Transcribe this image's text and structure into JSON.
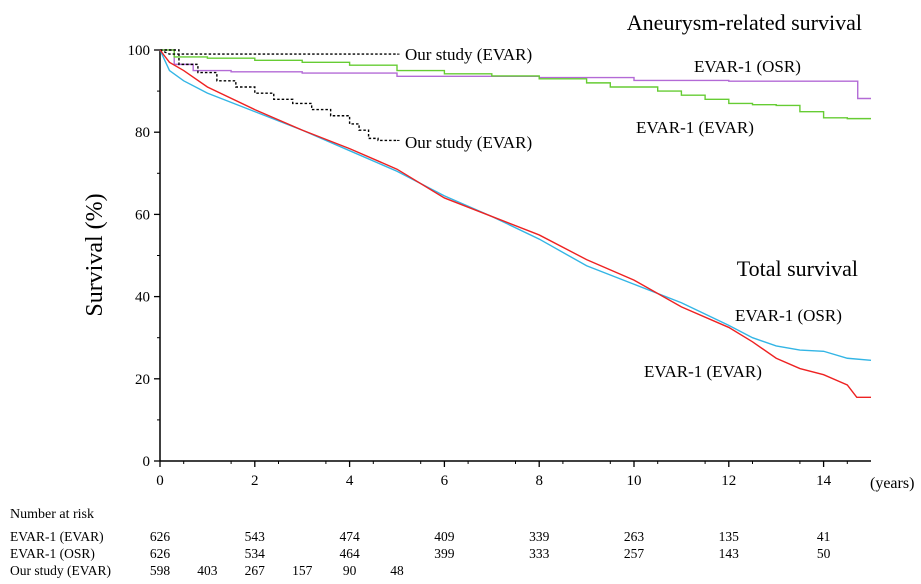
{
  "chart_data": {
    "type": "line",
    "title": "",
    "xlabel": "",
    "ylabel": "Survival (%)",
    "x_unit": "(years)",
    "xlim": [
      0,
      15
    ],
    "ylim": [
      0,
      100
    ],
    "x_ticks": [
      0,
      2,
      4,
      6,
      8,
      10,
      12,
      14
    ],
    "y_ticks": [
      0,
      20,
      40,
      60,
      80,
      100
    ],
    "grid": false,
    "groups": [
      {
        "label": "Aneurysm-related survival"
      },
      {
        "label": "Total survival"
      }
    ],
    "series": [
      {
        "name": "EVAR-1 (OSR)",
        "group": "Aneurysm-related survival",
        "color": "#b36ad6",
        "step": true,
        "x": [
          0,
          0.3,
          0.7,
          1.5,
          3,
          5,
          8,
          10,
          12,
          14.7,
          14.72,
          15
        ],
        "y": [
          100,
          96.5,
          95,
          94.7,
          94.4,
          93.6,
          93.3,
          92.6,
          92.4,
          92.4,
          88.2,
          88.2
        ]
      },
      {
        "name": "EVAR-1 (EVAR)",
        "group": "Aneurysm-related survival",
        "color": "#66cc33",
        "step": true,
        "x": [
          0,
          0.3,
          1,
          2,
          3,
          4,
          5,
          6,
          7,
          8,
          9,
          9.5,
          10.5,
          11,
          11.5,
          12,
          12.5,
          13,
          13.5,
          14,
          14.5,
          15
        ],
        "y": [
          100,
          98.3,
          98,
          97.5,
          97,
          96.3,
          95,
          94.2,
          93.7,
          93,
          92,
          91,
          90,
          89,
          88,
          87,
          86.7,
          86.5,
          85,
          83.5,
          83.3,
          83.3
        ]
      },
      {
        "name": "Our study (EVAR)",
        "group": "Aneurysm-related survival",
        "color": "#000000",
        "dash": true,
        "x": [
          0,
          0.2,
          5
        ],
        "y": [
          100,
          99,
          99
        ]
      },
      {
        "name": "Our study (EVAR)",
        "group": "Total survival",
        "color": "#000000",
        "dash": true,
        "step": true,
        "x": [
          0,
          0.4,
          0.8,
          1.2,
          1.6,
          2.0,
          2.4,
          2.8,
          3.2,
          3.6,
          4.0,
          4.2,
          4.4,
          4.6,
          5.0
        ],
        "y": [
          100,
          96.5,
          94.5,
          92.5,
          91,
          89.5,
          88,
          87,
          85.5,
          84,
          82,
          80.5,
          78.5,
          78,
          78
        ]
      },
      {
        "name": "EVAR-1 (OSR)",
        "group": "Total survival",
        "color": "#33b5e5",
        "step": false,
        "x": [
          0,
          0.2,
          0.5,
          1,
          2,
          3,
          4,
          5,
          6,
          7,
          8,
          9,
          10,
          11,
          12,
          12.5,
          13,
          13.5,
          14,
          14.5,
          15
        ],
        "y": [
          100,
          95,
          92.5,
          89.5,
          85,
          80.5,
          75.5,
          70.5,
          64.5,
          59.5,
          54,
          47.5,
          43,
          38.5,
          33,
          30,
          28,
          27,
          26.7,
          25,
          24.5
        ]
      },
      {
        "name": "EVAR-1 (EVAR)",
        "group": "Total survival",
        "color": "#ee2222",
        "step": false,
        "x": [
          0,
          0.2,
          0.5,
          1,
          2,
          3,
          4,
          5,
          6,
          7,
          8,
          9,
          10,
          11,
          12,
          12.5,
          13,
          13.5,
          14,
          14.5,
          14.7,
          15
        ],
        "y": [
          100,
          97,
          95,
          91,
          85.5,
          80.5,
          76,
          71,
          64,
          59.5,
          55,
          49,
          44,
          37.5,
          32.5,
          29,
          25,
          22.5,
          21,
          18.5,
          15.5,
          15.5
        ]
      }
    ],
    "annotations": [
      {
        "text": "Our study (EVAR)",
        "near": "upper dashed line end"
      },
      {
        "text": "EVAR-1 (OSR)",
        "near": "purple line"
      },
      {
        "text": "EVAR-1 (EVAR)",
        "near": "green line"
      },
      {
        "text": "Our study (EVAR)",
        "near": "lower dashed line end"
      },
      {
        "text": "EVAR-1 (OSR)",
        "near": "blue line end"
      },
      {
        "text": "EVAR-1 (EVAR)",
        "near": "red line end"
      }
    ],
    "risk_table": {
      "title": "Number at risk",
      "x": [
        0,
        1,
        2,
        3,
        4,
        5,
        6,
        8,
        10,
        12,
        14
      ],
      "rows": [
        {
          "label": "EVAR-1 (EVAR)",
          "values": [
            "626",
            "",
            "543",
            "",
            "474",
            "",
            "409",
            "339",
            "263",
            "135",
            "41"
          ]
        },
        {
          "label": "EVAR-1 (OSR)",
          "values": [
            "626",
            "",
            "534",
            "",
            "464",
            "",
            "399",
            "333",
            "257",
            "143",
            "50"
          ]
        },
        {
          "label": "Our study (EVAR)",
          "values": [
            "598",
            "403",
            "267",
            "157",
            "90",
            "48",
            "",
            "",
            "",
            "",
            ""
          ]
        }
      ]
    }
  }
}
